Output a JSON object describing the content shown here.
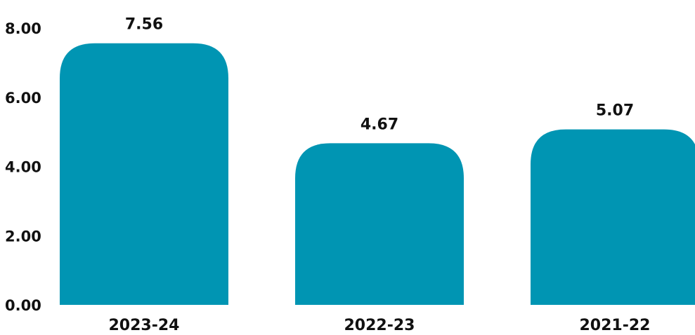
{
  "chart_data": {
    "type": "bar",
    "categories": [
      "2023-24",
      "2022-23",
      "2021-22"
    ],
    "values": [
      7.56,
      4.67,
      5.07
    ],
    "value_labels": [
      "7.56",
      "4.67",
      "5.07"
    ],
    "ylim": [
      0,
      8
    ],
    "yticks": [
      0,
      2,
      4,
      6,
      8
    ],
    "ytick_labels": [
      "0.00",
      "2.00",
      "4.00",
      "6.00",
      "8.00"
    ],
    "bar_color": "#0095b3",
    "grid": false,
    "legend": "none"
  }
}
